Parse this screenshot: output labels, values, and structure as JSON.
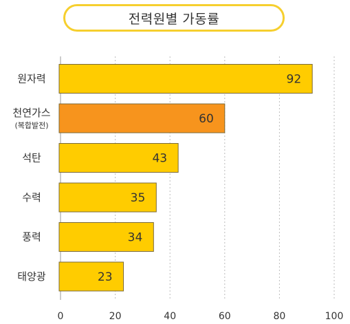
{
  "chart_data": {
    "type": "bar",
    "orientation": "horizontal",
    "title": "전력원별 가동률",
    "categories": [
      {
        "label": "원자력",
        "sublabel": ""
      },
      {
        "label": "천연가스",
        "sublabel": "(복합발전)"
      },
      {
        "label": "석탄",
        "sublabel": ""
      },
      {
        "label": "수력",
        "sublabel": ""
      },
      {
        "label": "풍력",
        "sublabel": ""
      },
      {
        "label": "태양광",
        "sublabel": ""
      }
    ],
    "values": [
      92,
      60,
      43,
      35,
      34,
      23
    ],
    "bar_colors": [
      "#FFCC00",
      "#F7941D",
      "#FFCC00",
      "#FFCC00",
      "#FFCC00",
      "#FFCC00"
    ],
    "bar_border_color": "#7A6A3A",
    "xlim": [
      0,
      100
    ],
    "xticks": [
      0,
      20,
      40,
      60,
      80,
      100
    ],
    "grid": "vertical dotted",
    "xlabel": "",
    "ylabel": ""
  },
  "colors": {
    "title_border": "#F6CF2E",
    "text": "#333333",
    "axis": "#999999",
    "grid": "#BBBBBB"
  }
}
